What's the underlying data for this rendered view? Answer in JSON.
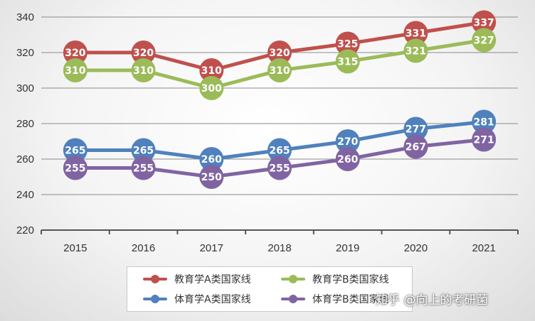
{
  "chart_data": {
    "type": "line",
    "categories": [
      "2015",
      "2016",
      "2017",
      "2018",
      "2019",
      "2020",
      "2021"
    ],
    "ylim": [
      220,
      340
    ],
    "yticks": [
      220,
      240,
      260,
      280,
      300,
      320,
      340
    ],
    "grid": true,
    "legend_position": "bottom",
    "series": [
      {
        "name": "教育学A类国家线",
        "color": "#c0504d",
        "values": [
          320,
          320,
          310,
          320,
          325,
          331,
          337
        ]
      },
      {
        "name": "教育学B类国家线",
        "color": "#9bbb59",
        "values": [
          310,
          310,
          300,
          310,
          315,
          321,
          327
        ]
      },
      {
        "name": "体育学A类国家线",
        "color": "#4f81bd",
        "values": [
          265,
          265,
          260,
          265,
          270,
          277,
          281
        ]
      },
      {
        "name": "体育学B类国家线",
        "color": "#8064a2",
        "values": [
          255,
          255,
          250,
          255,
          260,
          267,
          271
        ]
      }
    ]
  },
  "watermark": "知乎 @向上的考研菌"
}
